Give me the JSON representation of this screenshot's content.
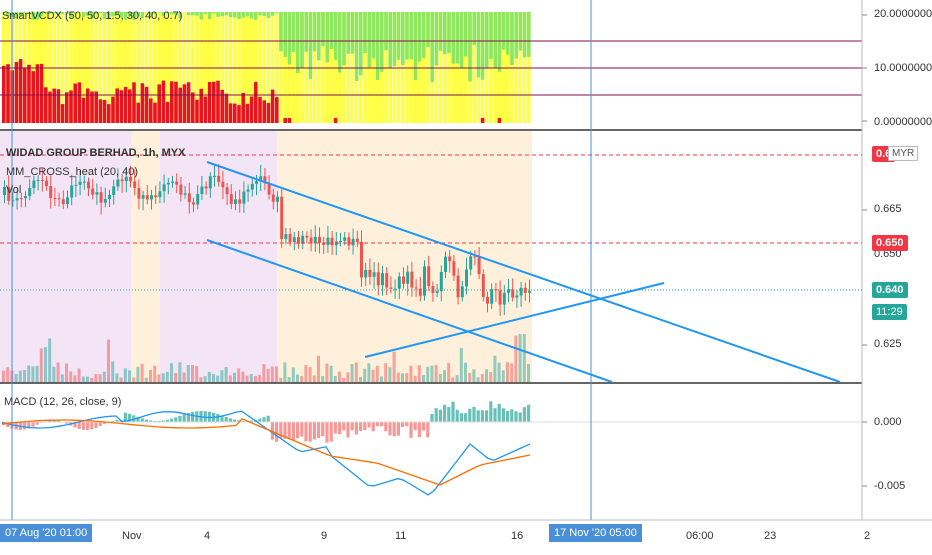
{
  "panes": {
    "smartcdx": {
      "legend": "SmartVCDX (50, 50, 1.5, 30, 40, 0.7)",
      "axis_ticks": [
        "20.00000000",
        "10.00000000",
        "0.00000000"
      ]
    },
    "main": {
      "legend_title": "WIDAD GROUP BERHAD, 1h, MYX",
      "legend_indicator": "MM_CROSS_heat (20, 40)",
      "legend_vol": "Vol",
      "axis_ticks": [
        "0.665",
        "0.650",
        "0.625"
      ],
      "currency": "MYR",
      "badges": {
        "top_price": "0.6",
        "dashed_price": "0.650",
        "last_price": "0.640",
        "countdown": "11:29"
      }
    },
    "macd": {
      "legend": "MACD (12, 26, close, 9)",
      "axis_ticks": [
        "0.000",
        "-0.005"
      ]
    }
  },
  "time_axis": {
    "ticks": [
      "Nov",
      "4",
      "9",
      "11",
      "16",
      "06:00",
      "23",
      "2"
    ],
    "cursor_left": "07 Aug '20  01:00",
    "cursor_right": "17 Nov '20  05:00"
  },
  "colors": {
    "bull": "#26a69a",
    "bear": "#ef5350",
    "trendline": "#2196f3",
    "accent": "#4a90d9",
    "red_badge": "#f23645",
    "green_badge": "#26a69a",
    "lime": "#8ee85f",
    "yellow": "#ffff44",
    "red_hist": "#e8141e",
    "purple_line": "#880e4f"
  }
}
